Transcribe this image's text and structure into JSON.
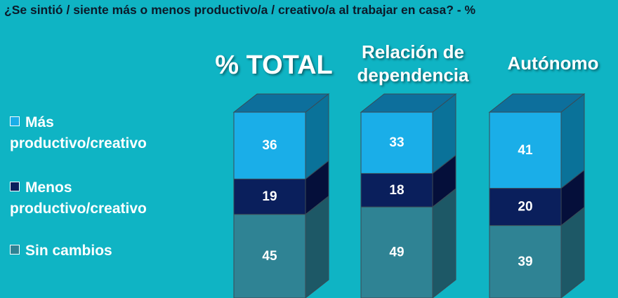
{
  "question": "¿Se sintió / siente más o menos productivo/a / creativo/a al trabajar en casa? - %",
  "legend": [
    {
      "label_line1": "Más",
      "label_line2": "productivo/creativo",
      "color": "#1aaee8"
    },
    {
      "label_line1": "Menos",
      "label_line2": "productivo/creativo",
      "color": "#0a1f5c"
    },
    {
      "label_line1": "Sin cambios",
      "label_line2": "",
      "color": "#2f8394"
    }
  ],
  "chart_data": {
    "type": "bar",
    "stacked": true,
    "categories": [
      "% TOTAL",
      "Relación de dependencia",
      "Autónomo"
    ],
    "series": [
      {
        "name": "Más productivo/creativo",
        "values": [
          36,
          33,
          41
        ],
        "color": "#1aaee8",
        "side_color": "#0a7299"
      },
      {
        "name": "Menos productivo/creativo",
        "values": [
          19,
          18,
          20
        ],
        "color": "#0a1f5c",
        "side_color": "#050f3a"
      },
      {
        "name": "Sin cambios",
        "values": [
          45,
          49,
          39
        ],
        "color": "#2f8394",
        "side_color": "#1d5866"
      }
    ],
    "top_color": "#0d6f9c",
    "ylim": [
      0,
      100
    ]
  }
}
